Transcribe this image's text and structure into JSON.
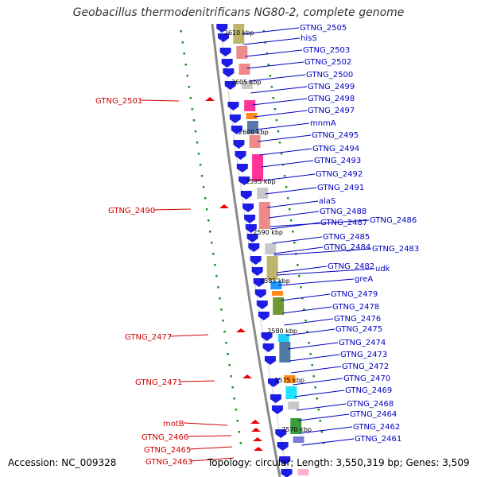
{
  "header": {
    "title": "Geobacillus thermodenitrificans NG80-2, complete genome"
  },
  "footer": {
    "accession": "Accession: NC_009328",
    "summary": "Topology: circular; Length: 3,550,319 bp; Genes: 3,509"
  },
  "colors": {
    "forward_arrow": "#1c1ce6",
    "reverse_arrow": "#e80000",
    "forward_label": "#0000c0",
    "reverse_label": "#d00000",
    "backbone": "#8a8a8a",
    "dots": "#1f8f1f"
  },
  "scale_labels": [
    {
      "text": "2610 kbp"
    },
    {
      "text": "2605 kbp"
    },
    {
      "text": "2600 kbp"
    },
    {
      "text": "2595 kbp"
    },
    {
      "text": "2590 kbp"
    },
    {
      "text": "2585 kbp"
    },
    {
      "text": "2580 kbp"
    },
    {
      "text": "2575 kbp"
    },
    {
      "text": "2570 kbp"
    }
  ],
  "forward_genes": [
    {
      "label": "GTNG_2505"
    },
    {
      "label": "hisS"
    },
    {
      "label": "GTNG_2503"
    },
    {
      "label": "GTNG_2502"
    },
    {
      "label": "GTNG_2500"
    },
    {
      "label": "GTNG_2499"
    },
    {
      "label": "GTNG_2498"
    },
    {
      "label": "GTNG_2497"
    },
    {
      "label": "mnmA"
    },
    {
      "label": "GTNG_2495"
    },
    {
      "label": "GTNG_2494"
    },
    {
      "label": "GTNG_2493"
    },
    {
      "label": "GTNG_2492"
    },
    {
      "label": "GTNG_2491"
    },
    {
      "label": "alaS"
    },
    {
      "label": "GTNG_2488"
    },
    {
      "label": "GTNG_2487"
    },
    {
      "label": "GTNG_2486"
    },
    {
      "label": "GTNG_2485"
    },
    {
      "label": "GTNG_2484"
    },
    {
      "label": "GTNG_2483"
    },
    {
      "label": "GTNG_2482"
    },
    {
      "label": "udk"
    },
    {
      "label": "greA"
    },
    {
      "label": "GTNG_2479"
    },
    {
      "label": "GTNG_2478"
    },
    {
      "label": "GTNG_2476"
    },
    {
      "label": "GTNG_2475"
    },
    {
      "label": "GTNG_2474"
    },
    {
      "label": "GTNG_2473"
    },
    {
      "label": "GTNG_2472"
    },
    {
      "label": "GTNG_2470"
    },
    {
      "label": "GTNG_2469"
    },
    {
      "label": "GTNG_2468"
    },
    {
      "label": "GTNG_2464"
    },
    {
      "label": "GTNG_2462"
    },
    {
      "label": "GTNG_2461"
    }
  ],
  "reverse_genes": [
    {
      "label": "GTNG_2501"
    },
    {
      "label": "GTNG_2490"
    },
    {
      "label": "GTNG_2477"
    },
    {
      "label": "GTNG_2471"
    },
    {
      "label": "motB"
    },
    {
      "label": "GTNG_2466"
    },
    {
      "label": "GTNG_2465"
    },
    {
      "label": "GTNG_2463"
    }
  ]
}
